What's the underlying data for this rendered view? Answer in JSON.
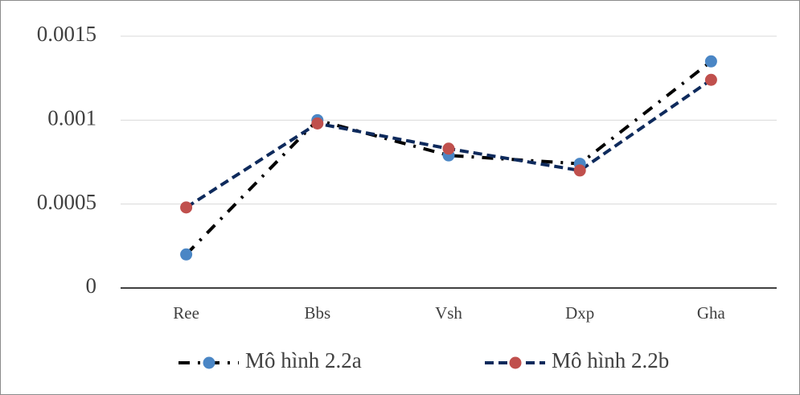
{
  "chart_data": {
    "type": "line",
    "categories": [
      "Ree",
      "Bbs",
      "Vsh",
      "Dxp",
      "Gha"
    ],
    "series": [
      {
        "name": "Mô hình 2.2a",
        "color": "#4a86c5",
        "line_color": "#000000",
        "line_style": "dash-dot",
        "values": [
          0.0002,
          0.001,
          0.00079,
          0.00074,
          0.00135
        ]
      },
      {
        "name": "Mô hình 2.2b",
        "color": "#c0504d",
        "line_color": "#0e2a5c",
        "line_style": "dashed",
        "values": [
          0.00048,
          0.00098,
          0.00083,
          0.0007,
          0.00124
        ]
      }
    ],
    "ylim": [
      0,
      0.0015
    ],
    "yticks": [
      0,
      0.0005,
      0.001,
      0.0015
    ],
    "grid": true,
    "legend": "bottom"
  }
}
